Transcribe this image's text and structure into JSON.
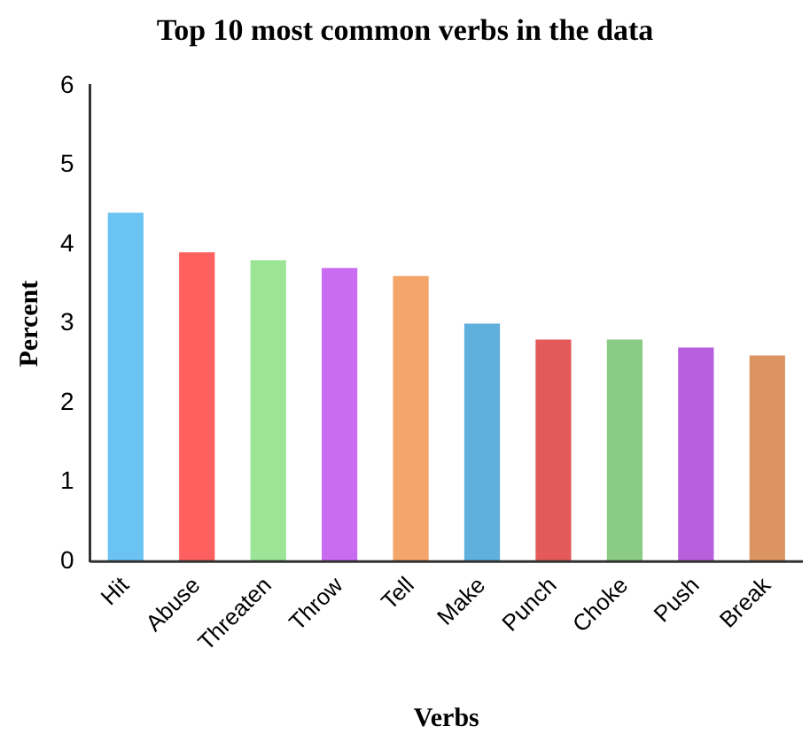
{
  "chart_data": {
    "type": "bar",
    "title": "Top 10 most common verbs in the data",
    "xlabel": "Verbs",
    "ylabel": "Percent",
    "categories": [
      "Hit",
      "Abuse",
      "Threaten",
      "Throw",
      "Tell",
      "Make",
      "Punch",
      "Choke",
      "Push",
      "Break"
    ],
    "values": [
      4.4,
      3.9,
      3.8,
      3.7,
      3.6,
      3.0,
      2.8,
      2.8,
      2.7,
      2.6
    ],
    "colors": [
      "#6ac3f2",
      "#fe5f5f",
      "#9ce596",
      "#c96cf2",
      "#f4a56a",
      "#5fb0dc",
      "#e45a5a",
      "#8acb86",
      "#b65edc",
      "#dc9460"
    ],
    "ylim": [
      0,
      6
    ],
    "yticks": [
      0,
      1,
      2,
      3,
      4,
      5,
      6
    ],
    "grid": false,
    "legend": false
  }
}
